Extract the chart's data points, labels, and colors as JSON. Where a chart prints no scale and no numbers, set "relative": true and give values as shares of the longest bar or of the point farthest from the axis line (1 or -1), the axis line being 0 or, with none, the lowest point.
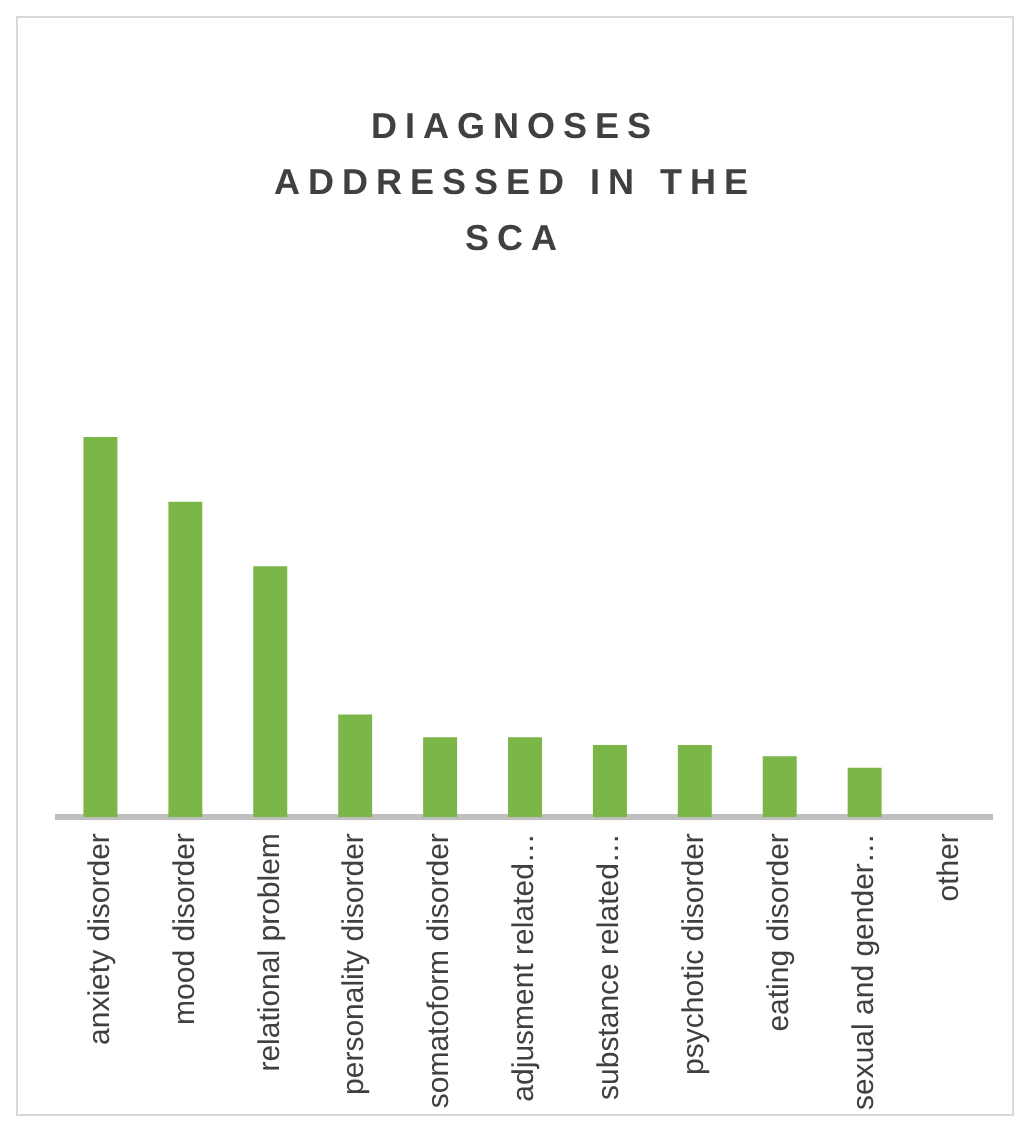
{
  "chart_data": {
    "type": "bar",
    "title": "DIAGNOSES ADDRESSED IN THE SCA",
    "relative": true,
    "grid": false,
    "legend": false,
    "categories": [
      "anxiety disorder",
      "mood disorder",
      "relational problem",
      "personality disorder",
      "somatoform disorder",
      "adjusment related…",
      "substance related…",
      "psychotic disorder",
      "eating disorder",
      "sexual and gender…",
      "other"
    ],
    "values": [
      1,
      0.83,
      0.66,
      0.27,
      0.21,
      0.21,
      0.19,
      0.19,
      0.16,
      0.13,
      0
    ],
    "color": "#7ab648"
  }
}
